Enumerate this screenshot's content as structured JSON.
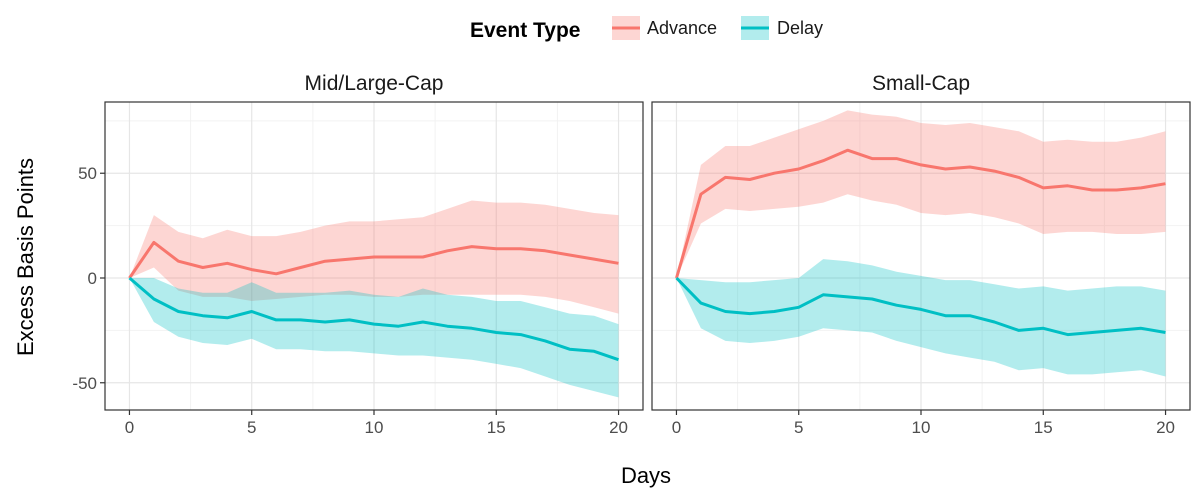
{
  "chart_data": {
    "type": "line",
    "xlabel": "Days",
    "ylabel": "Excess Basis Points",
    "xlim": [
      -1,
      21
    ],
    "ylim": [
      -63,
      84
    ],
    "xticks": [
      0,
      5,
      10,
      15,
      20
    ],
    "yticks": [
      -50,
      0,
      50
    ],
    "grid": true,
    "legend": {
      "title": "Event Type",
      "placement": "top",
      "entries": [
        "Advance",
        "Delay"
      ]
    },
    "colors": {
      "Advance": "#F8766D",
      "Delay": "#00BFC4"
    },
    "x": [
      0,
      1,
      2,
      3,
      4,
      5,
      6,
      7,
      8,
      9,
      10,
      11,
      12,
      13,
      14,
      15,
      16,
      17,
      18,
      19,
      20
    ],
    "panels": [
      {
        "title": "Mid/Large-Cap",
        "series": [
          {
            "name": "Advance",
            "values": [
              0,
              17,
              8,
              5,
              7,
              4,
              2,
              5,
              8,
              9,
              10,
              10,
              10,
              13,
              15,
              14,
              14,
              13,
              11,
              9,
              7
            ],
            "lower": [
              0,
              5,
              -6,
              -9,
              -9,
              -11,
              -10,
              -9,
              -8,
              -8,
              -9,
              -9,
              -8,
              -8,
              -8,
              -8,
              -8,
              -9,
              -11,
              -14,
              -17
            ],
            "upper": [
              0,
              30,
              22,
              19,
              23,
              20,
              20,
              22,
              25,
              27,
              27,
              28,
              29,
              33,
              37,
              36,
              36,
              35,
              33,
              31,
              30
            ]
          },
          {
            "name": "Delay",
            "values": [
              0,
              -10,
              -16,
              -18,
              -19,
              -16,
              -20,
              -20,
              -21,
              -20,
              -22,
              -23,
              -21,
              -23,
              -24,
              -26,
              -27,
              -30,
              -34,
              -35,
              -39
            ],
            "lower": [
              0,
              -21,
              -28,
              -31,
              -32,
              -29,
              -34,
              -34,
              -35,
              -35,
              -36,
              -37,
              -37,
              -38,
              -39,
              -41,
              -43,
              -47,
              -51,
              -54,
              -57
            ],
            "upper": [
              0,
              0,
              -5,
              -7,
              -7,
              -2,
              -7,
              -7,
              -7,
              -6,
              -8,
              -9,
              -5,
              -8,
              -9,
              -11,
              -11,
              -14,
              -17,
              -18,
              -22
            ]
          }
        ]
      },
      {
        "title": "Small-Cap",
        "series": [
          {
            "name": "Advance",
            "values": [
              0,
              40,
              48,
              47,
              50,
              52,
              56,
              61,
              57,
              57,
              54,
              52,
              53,
              51,
              48,
              43,
              44,
              42,
              42,
              43,
              45
            ],
            "lower": [
              0,
              26,
              33,
              32,
              33,
              34,
              36,
              40,
              37,
              35,
              31,
              30,
              31,
              29,
              26,
              21,
              22,
              22,
              21,
              21,
              22
            ],
            "upper": [
              0,
              54,
              63,
              63,
              67,
              71,
              75,
              80,
              78,
              77,
              74,
              73,
              74,
              72,
              70,
              65,
              66,
              65,
              65,
              67,
              70
            ]
          },
          {
            "name": "Delay",
            "values": [
              0,
              -12,
              -16,
              -17,
              -16,
              -14,
              -8,
              -9,
              -10,
              -13,
              -15,
              -18,
              -18,
              -21,
              -25,
              -24,
              -27,
              -26,
              -25,
              -24,
              -26
            ],
            "lower": [
              0,
              -24,
              -30,
              -31,
              -30,
              -28,
              -24,
              -25,
              -26,
              -30,
              -33,
              -36,
              -38,
              -40,
              -44,
              -43,
              -46,
              -46,
              -45,
              -44,
              -47
            ],
            "upper": [
              0,
              -1,
              -2,
              -2,
              -1,
              0,
              9,
              8,
              6,
              3,
              1,
              -1,
              -1,
              -3,
              -5,
              -4,
              -6,
              -5,
              -4,
              -4,
              -6
            ]
          }
        ]
      }
    ]
  }
}
